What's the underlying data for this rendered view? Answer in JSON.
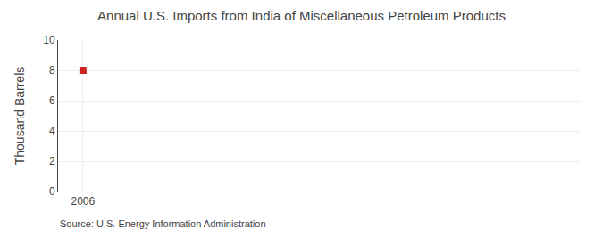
{
  "chart_data": {
    "type": "scatter",
    "title": "Annual U.S. Imports from India of Miscellaneous Petroleum Products",
    "ylabel": "Thousand Barrels",
    "x": [
      2006
    ],
    "values": [
      8
    ],
    "color": "#cc2222",
    "marker": "square",
    "xlim": [
      2005.5,
      2016
    ],
    "ylim": [
      0,
      10
    ],
    "xticks": [
      2006
    ],
    "yticks": [
      0,
      2,
      4,
      6,
      8,
      10
    ],
    "grid": true,
    "annotations": [
      "Source: U.S. Energy Information Administration"
    ]
  }
}
